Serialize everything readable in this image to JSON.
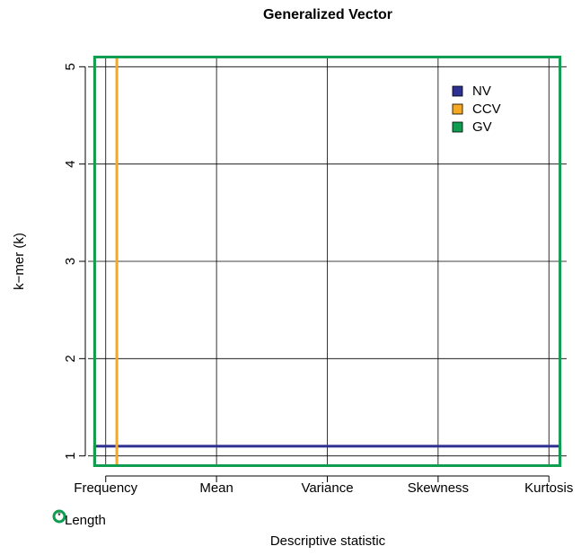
{
  "chart_data": {
    "type": "rect",
    "title": "Generalized Vector",
    "xlabel": "Descriptive statistic",
    "ylabel": "k−mer (k)",
    "categories": [
      "Frequency",
      "Mean",
      "Variance",
      "Skewness",
      "Kurtosis"
    ],
    "xlim": [
      0.84,
      5.16
    ],
    "ylim": [
      0.84,
      5.16
    ],
    "yticks": [
      1,
      2,
      3,
      4,
      5
    ],
    "grid": true,
    "legend": "top-right",
    "series": [
      {
        "name": "NV",
        "color": "#2e3192",
        "x": [
          0.9,
          5.1
        ],
        "y": [
          0.9,
          1.1
        ]
      },
      {
        "name": "CCV",
        "color": "#f7a823",
        "x": [
          0.9,
          1.1
        ],
        "y": [
          0.9,
          5.1
        ]
      },
      {
        "name": "GV",
        "color": "#0f9d4f",
        "x": [
          0.9,
          5.1
        ],
        "y": [
          0.9,
          5.1
        ]
      }
    ],
    "annotation": "Length"
  }
}
